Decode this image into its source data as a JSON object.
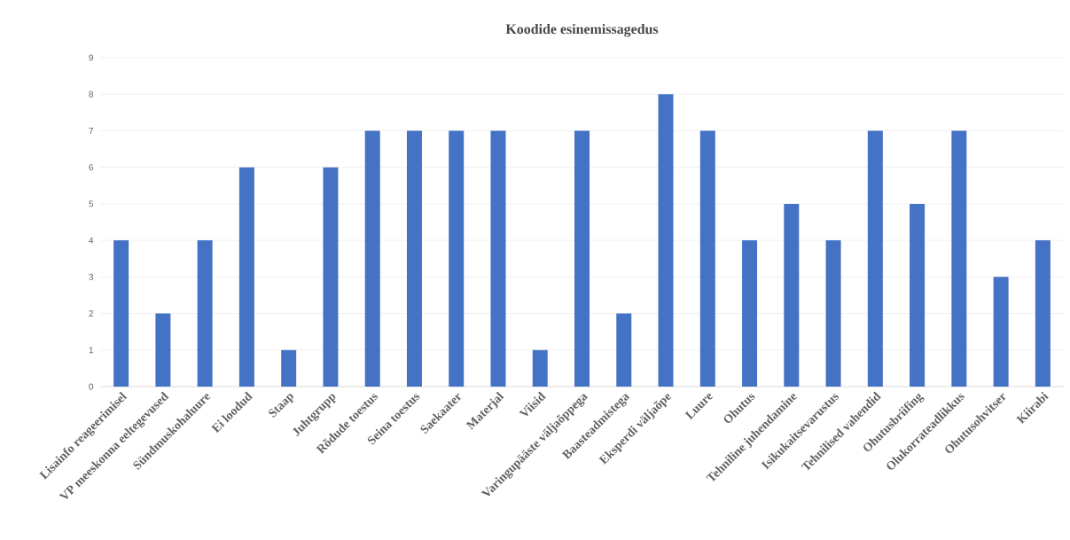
{
  "chart_data": {
    "type": "bar",
    "title": "Koodide esinemissagedus",
    "categories": [
      "Lisainfo reageerimisel",
      "VP meeskonna eeltegevused",
      "Sündmuskohaluure",
      "Ei loodud",
      "Staap",
      "Juhtgrupp",
      "Rõdude toestus",
      "Seina toestus",
      "Saekaater",
      "Materjal",
      "Viisid",
      "Varingupääste väljaõppega",
      "Baasteadmistega",
      "Eksperdi väljaõpe",
      "Luure",
      "Ohutus",
      "Tehniline juhendamine",
      "Isikukaitsevarustus",
      "Tehnilised vahendid",
      "Ohutusbriifing",
      "Olukorrateadlikkus",
      "Ohutusohvitser",
      "Kiirabi"
    ],
    "values": [
      4,
      2,
      4,
      6,
      1,
      6,
      7,
      7,
      7,
      7,
      1,
      7,
      2,
      8,
      7,
      4,
      5,
      4,
      7,
      5,
      7,
      3,
      4
    ],
    "color": "#4472c4",
    "ylim": [
      0,
      9
    ],
    "yticks": [
      0,
      1,
      2,
      3,
      4,
      5,
      6,
      7,
      8,
      9
    ],
    "grid": "y"
  }
}
